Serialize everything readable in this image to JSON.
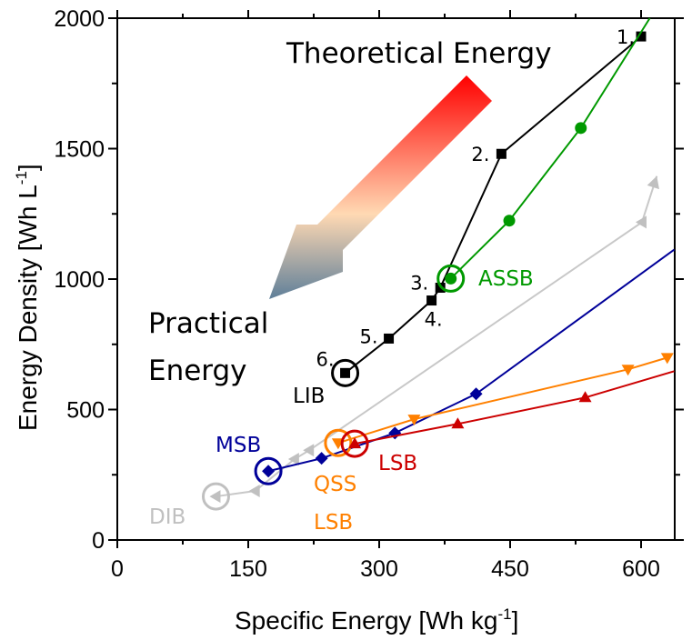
{
  "chart_data": {
    "type": "scatter",
    "title": "",
    "xlabel": "Specific Energy [Wh kg",
    "xlabel_sup": "-1",
    "xlabel_end": "]",
    "ylabel": "Energy Density [Wh L",
    "ylabel_sup": "-1",
    "ylabel_end": "]",
    "xlim": [
      0,
      640
    ],
    "ylim": [
      0,
      2000
    ],
    "xticks": [
      0,
      150,
      300,
      450,
      600
    ],
    "xtick_labels": [
      "0",
      "150",
      "300",
      "450",
      "600"
    ],
    "xminor": [
      75,
      225,
      375,
      525
    ],
    "yticks": [
      0,
      500,
      1000,
      1500,
      2000
    ],
    "ytick_labels": [
      "0",
      "500",
      "1000",
      "1500",
      "2000"
    ],
    "yminor": [
      250,
      750,
      1250,
      1750
    ],
    "grid": false,
    "legend": "none",
    "series": [
      {
        "name": "LIB",
        "color": "#000000",
        "marker": "square",
        "x": [
          600,
          440,
          370,
          360,
          311,
          261
        ],
        "y": [
          1930,
          1480,
          967,
          918,
          772,
          640
        ],
        "point_labels": [
          "1.",
          "2.",
          "3.",
          "4.",
          "5.",
          "6."
        ],
        "highlight_index": 5
      },
      {
        "name": "ASSB",
        "color": "#009900",
        "marker": "circle",
        "x": [
          382,
          449,
          531
        ],
        "y": [
          1002,
          1224,
          1579
        ],
        "line_extend_to": [
          610,
          2000
        ],
        "highlight_index": 0
      },
      {
        "name": "DIB",
        "color": "#c0c0c0",
        "marker": "triangle-left",
        "x": [
          113,
          158,
          203,
          220,
          601,
          618
        ],
        "y": [
          167,
          188,
          310,
          344,
          1218,
          1395
        ],
        "arrow_end": true,
        "highlight_index": 0
      },
      {
        "name": "MSB",
        "color": "#000099",
        "marker": "diamond",
        "x": [
          173,
          234,
          318,
          411
        ],
        "y": [
          264,
          313,
          410,
          560
        ],
        "line_extend_to": [
          638,
          1113
        ],
        "highlight_index": 0
      },
      {
        "name": "QSS LSB",
        "color": "#ff8000",
        "marker": "triangle-down",
        "x": [
          253,
          340,
          585,
          630
        ],
        "y": [
          372,
          463,
          654,
          699
        ],
        "highlight_index": 0
      },
      {
        "name": "LSB",
        "color": "#cc0000",
        "marker": "triangle-up",
        "x": [
          272,
          390,
          536
        ],
        "y": [
          369,
          445,
          546
        ],
        "line_extend_to": [
          638,
          647
        ],
        "highlight_index": 0
      }
    ],
    "annotations": {
      "theoretical": "Theoretical Energy",
      "practical_1": "Practical",
      "practical_2": "Energy",
      "lib": "LIB",
      "assb": "ASSB",
      "dib": "DIB",
      "msb": "MSB",
      "qss": "QSS",
      "qss_lsb": "LSB",
      "lsb": "LSB",
      "arrow_from_color": "#ff0000",
      "arrow_mid_color": "#ffd9b3",
      "arrow_to_color": "#5f7f99"
    }
  }
}
